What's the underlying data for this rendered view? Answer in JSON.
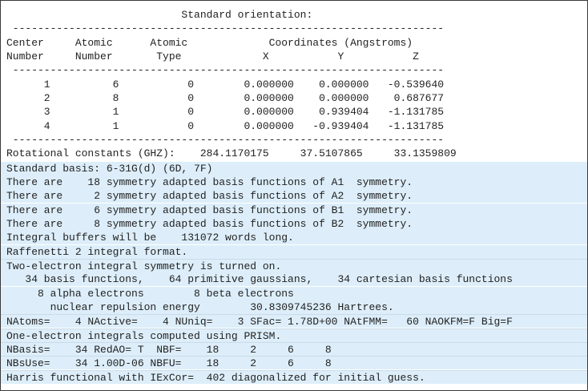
{
  "colors": {
    "highlight_bg": "#ddeefa",
    "text": "#222222",
    "border": "#3a3a3a"
  },
  "plain_lines": [
    "                            Standard orientation:",
    " ---------------------------------------------------------------------",
    "Center     Atomic      Atomic             Coordinates (Angstroms)",
    "Number     Number       Type             X           Y           Z",
    " ---------------------------------------------------------------------",
    "      1          6           0        0.000000    0.000000   -0.539640",
    "      2          8           0        0.000000    0.000000    0.687677",
    "      3          1           0        0.000000    0.939404   -1.131785",
    "      4          1           0        0.000000   -0.939404   -1.131785",
    " ---------------------------------------------------------------------",
    "Rotational constants (GHZ):    284.1170175     37.5107865     33.1359809"
  ],
  "highlight_lines": [
    "Standard basis: 6-31G(d) (6D, 7F)",
    "There are    18 symmetry adapted basis functions of A1  symmetry.",
    "There are     2 symmetry adapted basis functions of A2  symmetry.",
    "There are     6 symmetry adapted basis functions of B1  symmetry.",
    "There are     8 symmetry adapted basis functions of B2  symmetry.",
    "Integral buffers will be    131072 words long.",
    "Raffenetti 2 integral format.",
    "Two-electron integral symmetry is turned on.",
    "   34 basis functions,    64 primitive gaussians,    34 cartesian basis functions",
    "     8 alpha electrons        8 beta electrons",
    "       nuclear repulsion energy        30.8309745236 Hartrees.",
    "NAtoms=    4 NActive=    4 NUniq=    3 SFac= 1.78D+00 NAtFMM=   60 NAOKFM=F Big=F",
    "One-electron integrals computed using PRISM.",
    "NBasis=    34 RedAO= T  NBF=    18     2     6     8",
    "NBsUse=    34 1.00D-06 NBFU=    18     2     6     8",
    "Harris functional with IExCor=  402 diagonalized for initial guess."
  ]
}
